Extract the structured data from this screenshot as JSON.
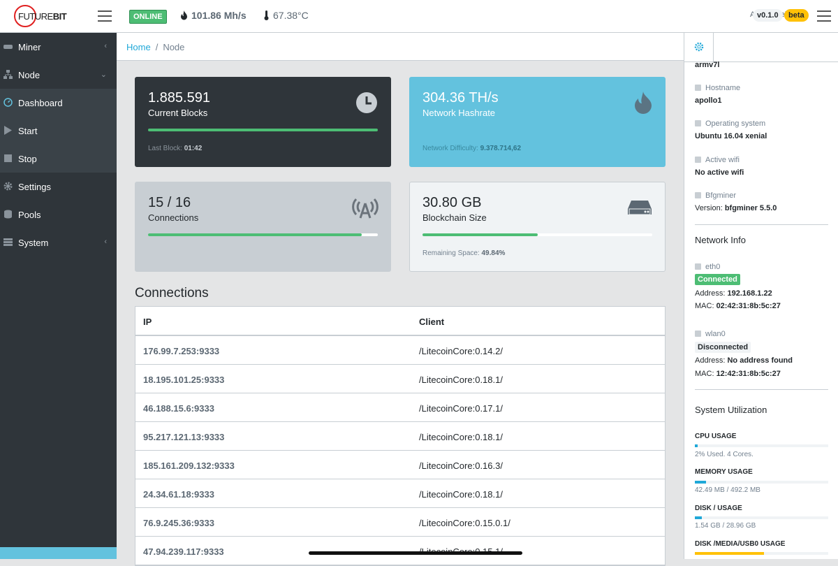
{
  "header": {
    "logo_text_a": "FUTURE",
    "logo_text_b": "BIT",
    "status": "ONLINE",
    "hashrate": "101.86 Mh/s",
    "temperature": "67.38°C",
    "app_name": "Apollo Web",
    "version": "v0.1.0",
    "beta": "beta"
  },
  "sidebar": {
    "items": [
      {
        "label": "Miner",
        "icon": "miner-icon"
      },
      {
        "label": "Node",
        "icon": "network-icon"
      },
      {
        "label": "Dashboard",
        "icon": "speedometer-icon"
      },
      {
        "label": "Start",
        "icon": "play-icon"
      },
      {
        "label": "Stop",
        "icon": "stop-icon"
      },
      {
        "label": "Settings",
        "icon": "gear-icon"
      },
      {
        "label": "Pools",
        "icon": "database-icon"
      },
      {
        "label": "System",
        "icon": "server-icon"
      }
    ]
  },
  "breadcrumb": {
    "home": "Home",
    "current": "Node"
  },
  "cards": {
    "blocks": {
      "value": "1.885.591",
      "label": "Current Blocks",
      "foot_label": "Last Block:",
      "foot_value": "01:42",
      "progress": 1.0
    },
    "hashrate": {
      "value": "304.36 TH/s",
      "label": "Network Hashrate",
      "foot_label": "Network Difficulty:",
      "foot_value": "9.378.714,62"
    },
    "connections": {
      "value": "15 / 16",
      "label": "Connections",
      "progress": 0.93
    },
    "blockchain": {
      "value": "30.80 GB",
      "label": "Blockchain Size",
      "foot_label": "Remaining Space:",
      "foot_value": "49.84%",
      "progress": 0.5
    }
  },
  "connections": {
    "title": "Connections",
    "headers": {
      "ip": "IP",
      "client": "Client"
    },
    "rows": [
      {
        "ip": "176.99.7.253:9333",
        "client": "/LitecoinCore:0.14.2/"
      },
      {
        "ip": "18.195.101.25:9333",
        "client": "/LitecoinCore:0.18.1/"
      },
      {
        "ip": "46.188.15.6:9333",
        "client": "/LitecoinCore:0.17.1/"
      },
      {
        "ip": "95.217.121.13:9333",
        "client": "/LitecoinCore:0.18.1/"
      },
      {
        "ip": "185.161.209.132:9333",
        "client": "/LitecoinCore:0.16.3/"
      },
      {
        "ip": "24.34.61.18:9333",
        "client": "/LitecoinCore:0.18.1/"
      },
      {
        "ip": "76.9.245.36:9333",
        "client": "/LitecoinCore:0.15.0.1/"
      },
      {
        "ip": "47.94.239.117:9333",
        "client": "/LitecoinCore:0.15.1/"
      }
    ]
  },
  "aside": {
    "arch": "armv7l",
    "hostname_label": "Hostname",
    "hostname": "apollo1",
    "os_label": "Operating system",
    "os": "Ubuntu 16.04 xenial",
    "wifi_label": "Active wifi",
    "wifi": "No active wifi",
    "bfg_label": "Bfgminer",
    "bfg_prefix": "Version:",
    "bfg": "bfgminer 5.5.0",
    "network_title": "Network Info",
    "eth0": {
      "name": "eth0",
      "status": "Connected",
      "addr_label": "Address:",
      "addr": "192.168.1.22",
      "mac_label": "MAC:",
      "mac": "02:42:31:8b:5c:27"
    },
    "wlan0": {
      "name": "wlan0",
      "status": "Disconnected",
      "addr_label": "Address:",
      "addr": "No address found",
      "mac_label": "MAC:",
      "mac": "12:42:31:8b:5c:27"
    },
    "util_title": "System Utilization",
    "cpu": {
      "label": "CPU USAGE",
      "text": "2% Used. 4 Cores.",
      "fraction": 0.02
    },
    "mem": {
      "label": "MEMORY USAGE",
      "text": "42.49 MB / 492.2 MB",
      "fraction": 0.086
    },
    "disk": {
      "label": "DISK / USAGE",
      "text": "1.54 GB / 28.96 GB",
      "fraction": 0.053
    },
    "usb": {
      "label": "DISK /MEDIA/USB0 USAGE",
      "fraction": 0.52
    }
  },
  "colors": {
    "success": "#4dbd74",
    "info": "#63c2de",
    "dark": "#2f353a",
    "warning": "#ffc107"
  }
}
